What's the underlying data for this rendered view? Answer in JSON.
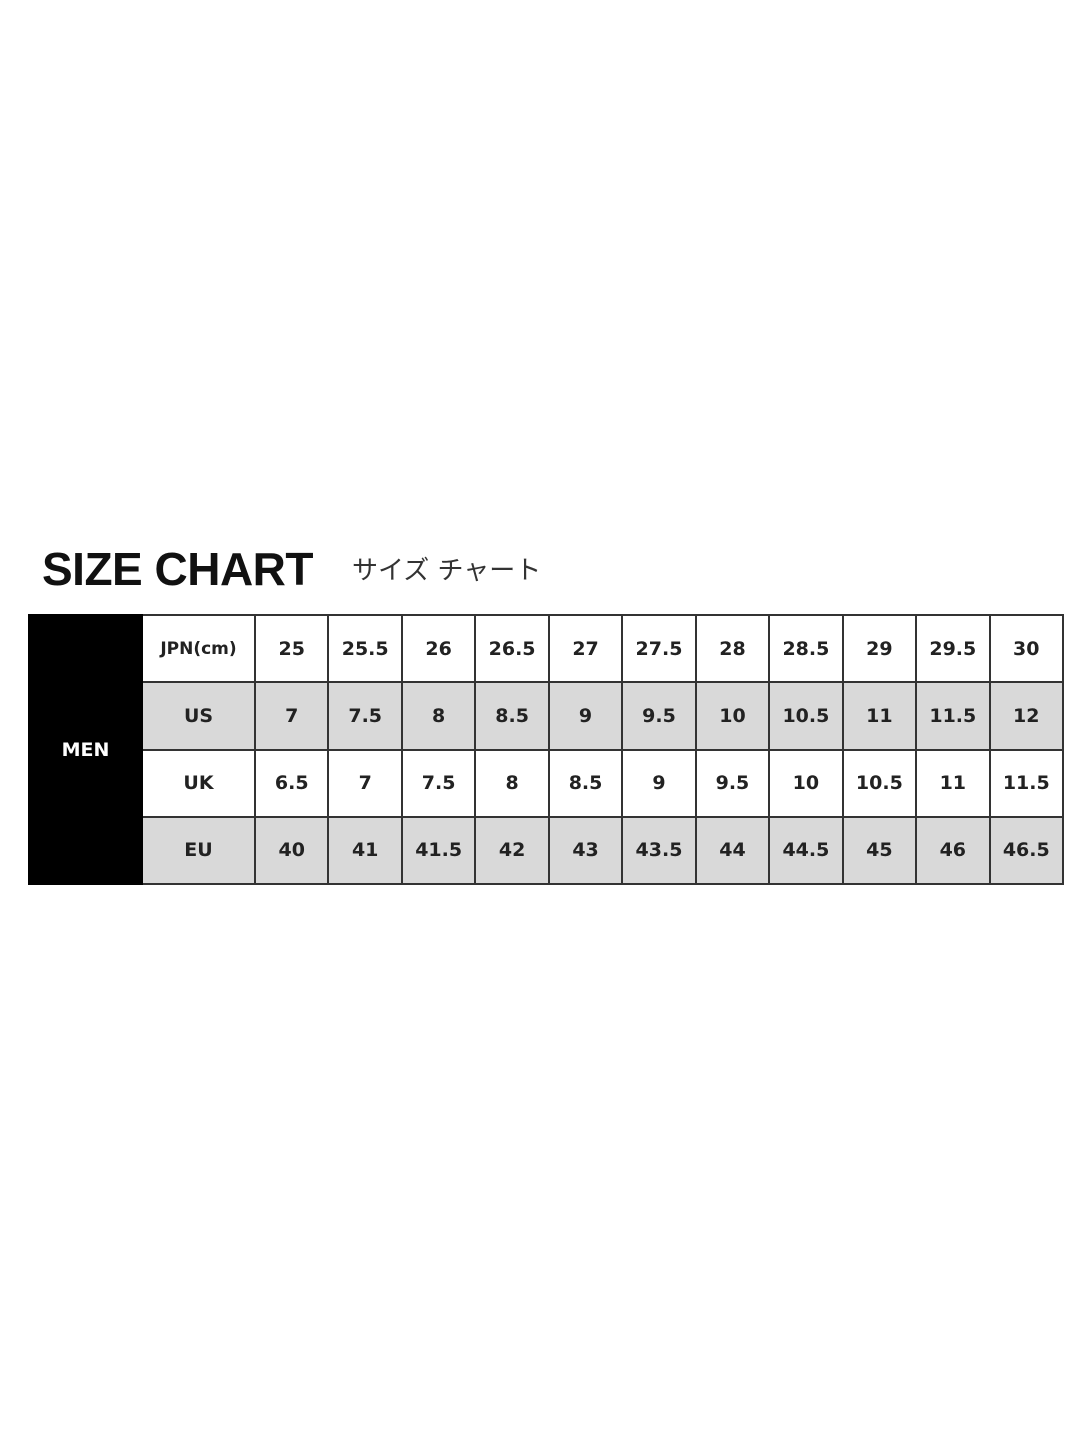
{
  "header": {
    "title": "SIZE CHART",
    "subtitle": "サイズ チャート"
  },
  "table": {
    "group": "MEN",
    "shaded_color": "#d9d9d9",
    "rows": [
      {
        "label": "JPN(cm)",
        "values": [
          "25",
          "25.5",
          "26",
          "26.5",
          "27",
          "27.5",
          "28",
          "28.5",
          "29",
          "29.5",
          "30"
        ]
      },
      {
        "label": "US",
        "values": [
          "7",
          "7.5",
          "8",
          "8.5",
          "9",
          "9.5",
          "10",
          "10.5",
          "11",
          "11.5",
          "12"
        ]
      },
      {
        "label": "UK",
        "values": [
          "6.5",
          "7",
          "7.5",
          "8",
          "8.5",
          "9",
          "9.5",
          "10",
          "10.5",
          "11",
          "11.5"
        ]
      },
      {
        "label": "EU",
        "values": [
          "40",
          "41",
          "41.5",
          "42",
          "43",
          "43.5",
          "44",
          "44.5",
          "45",
          "46",
          "46.5"
        ]
      }
    ]
  }
}
